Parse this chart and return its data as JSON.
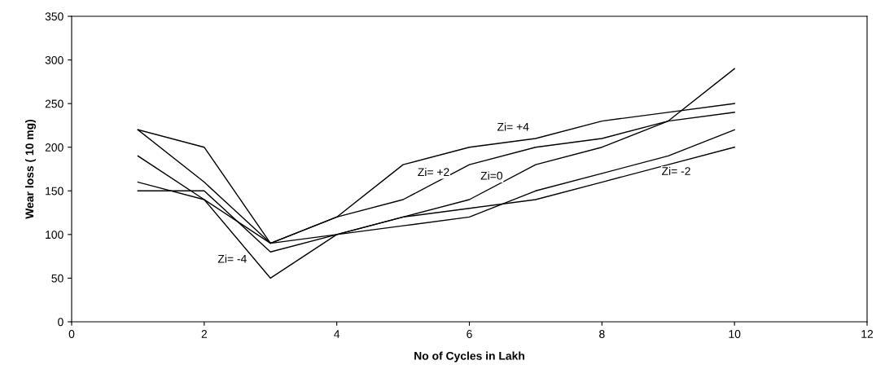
{
  "chart_data": {
    "type": "line",
    "xlabel": "No of Cycles in Lakh",
    "ylabel": "Wear loss ( 10 mg)",
    "x": [
      1,
      2,
      3,
      4,
      5,
      6,
      7,
      8,
      9,
      10
    ],
    "series": [
      {
        "name": "Zi= +4",
        "color": "#000000",
        "values": [
          220,
          200,
          90,
          120,
          180,
          200,
          210,
          230,
          240,
          250
        ]
      },
      {
        "name": "Zi= +2",
        "color": "#000000",
        "values": [
          220,
          160,
          90,
          120,
          140,
          180,
          200,
          210,
          230,
          240
        ]
      },
      {
        "name": "Zi=0",
        "color": "#000000",
        "values": [
          190,
          140,
          90,
          100,
          120,
          140,
          180,
          200,
          230,
          290
        ]
      },
      {
        "name": "Zi= -4",
        "color": "#000000",
        "values": [
          160,
          140,
          50,
          100,
          110,
          120,
          150,
          170,
          190,
          220
        ]
      },
      {
        "name": "Zi= -2",
        "color": "#000000",
        "values": [
          150,
          150,
          80,
          100,
          120,
          130,
          140,
          160,
          180,
          200
        ]
      }
    ],
    "xlim": [
      0,
      12
    ],
    "xticks": [
      0,
      2,
      4,
      6,
      8,
      10,
      12
    ],
    "ylim": [
      0,
      350
    ],
    "yticks": [
      0,
      50,
      100,
      150,
      200,
      250,
      300,
      350
    ],
    "grid": false,
    "legend": false,
    "marker": "none",
    "line_style": "solid"
  }
}
